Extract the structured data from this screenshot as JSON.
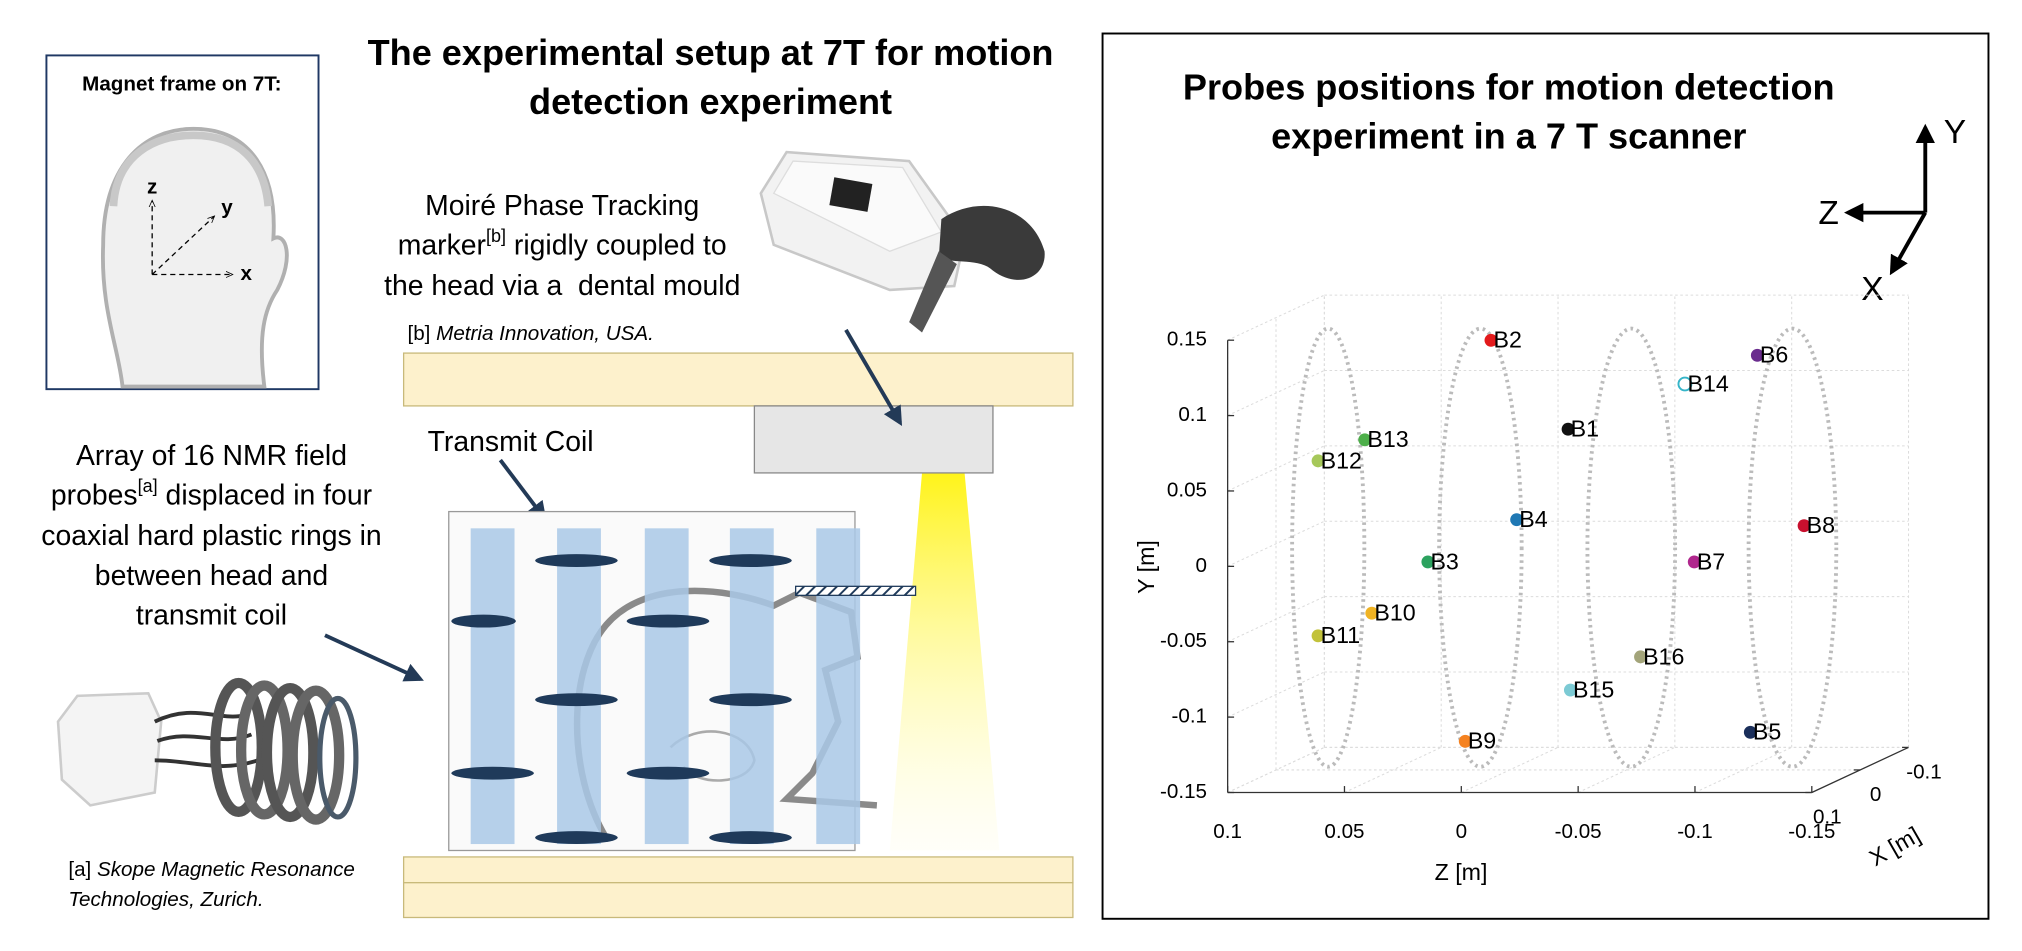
{
  "setup": {
    "title": [
      "The experimental setup at 7T for motion",
      "detection experiment"
    ],
    "magnet_frame": {
      "title": "Magnet frame on 7T:",
      "axes": [
        "z",
        "y",
        "x"
      ]
    },
    "tracking_marker": {
      "lines": [
        [
          "Moiré Phase Tracking"
        ],
        [
          "marker",
          "[b]",
          " rigidly coupled to"
        ],
        [
          "the head via a  dental mould"
        ]
      ],
      "footnote": [
        "[b] ",
        "Metria Innovation, USA."
      ]
    },
    "transmit_coil": "Transmit Coil",
    "probe_array": {
      "lines": [
        [
          "Array of 16 NMR field"
        ],
        [
          "probes",
          "[a]",
          " displaced in four"
        ],
        [
          "coaxial hard plastic rings in"
        ],
        [
          "between head and"
        ],
        [
          "transmit coil"
        ]
      ],
      "footnote": [
        "[a] ",
        "Skope Magnetic Resonance",
        "Technologies, Zurich."
      ]
    }
  },
  "chart_data": {
    "type": "scatter3d",
    "title": [
      "Probes positions for motion detection",
      "experiment in a 7 T scanner"
    ],
    "orientation_axes": [
      "Y",
      "Z",
      "X"
    ],
    "x_label": "X [m]",
    "y_label": "Y [m]",
    "z_label": "Z [m]",
    "xlim": [
      0.1,
      -0.1
    ],
    "xticks": [
      0.1,
      0,
      -0.1
    ],
    "ylim": [
      -0.15,
      0.15
    ],
    "yticks": [
      0.15,
      0.1,
      0.05,
      0,
      -0.05,
      -0.1,
      -0.15
    ],
    "zlim": [
      0.1,
      -0.15
    ],
    "zticks": [
      0.1,
      0.05,
      0,
      -0.05,
      -0.1,
      -0.15
    ],
    "grid": true,
    "points": [
      {
        "name": "B2",
        "color": "#e31a1c",
        "x": 0,
        "y": 0.135,
        "z": 0.008
      },
      {
        "name": "B6",
        "color": "#6a2c8e",
        "x": 0,
        "y": 0.125,
        "z": -0.106
      },
      {
        "name": "B14",
        "color": "#35b5c9",
        "marker": "open",
        "x": 0,
        "y": 0.106,
        "z": -0.075
      },
      {
        "name": "B1",
        "color": "#111111",
        "x": 0,
        "y": 0.076,
        "z": -0.025
      },
      {
        "name": "B13",
        "color": "#4daf4a",
        "x": 0,
        "y": 0.069,
        "z": 0.062
      },
      {
        "name": "B12",
        "color": "#a6c85a",
        "x": 0,
        "y": 0.055,
        "z": 0.082
      },
      {
        "name": "B4",
        "color": "#1f78b4",
        "x": 0,
        "y": 0.016,
        "z": -0.003
      },
      {
        "name": "B8",
        "color": "#c8102e",
        "x": 0,
        "y": 0.012,
        "z": -0.126
      },
      {
        "name": "B3",
        "color": "#2ca25f",
        "x": 0,
        "y": -0.012,
        "z": 0.035
      },
      {
        "name": "B7",
        "color": "#b0278d",
        "x": 0,
        "y": -0.012,
        "z": -0.079
      },
      {
        "name": "B10",
        "color": "#f0b323",
        "x": 0,
        "y": -0.046,
        "z": 0.059
      },
      {
        "name": "B11",
        "color": "#c2c23a",
        "x": 0,
        "y": -0.061,
        "z": 0.082
      },
      {
        "name": "B16",
        "color": "#a3a47a",
        "x": 0,
        "y": -0.075,
        "z": -0.056
      },
      {
        "name": "B15",
        "color": "#7ccad4",
        "x": 0,
        "y": -0.097,
        "z": -0.026
      },
      {
        "name": "B5",
        "color": "#1a2e5a",
        "x": 0,
        "y": -0.125,
        "z": -0.103
      },
      {
        "name": "B9",
        "color": "#f58220",
        "x": 0,
        "y": -0.131,
        "z": 0.019
      }
    ]
  }
}
